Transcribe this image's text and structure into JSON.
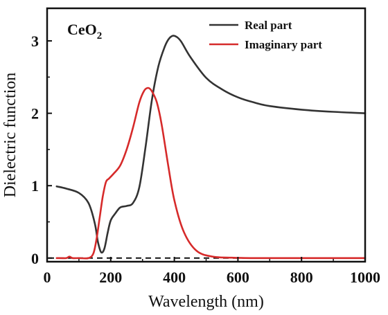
{
  "chart_data": {
    "type": "line",
    "title": "CeO",
    "title_subscript": "2",
    "xlabel": "Wavelength (nm)",
    "ylabel": "Dielectric function",
    "xlim": [
      0,
      1000
    ],
    "ylim": [
      -0.05,
      3.45
    ],
    "x_ticks": [
      0,
      200,
      400,
      600,
      800,
      1000
    ],
    "y_ticks": [
      0,
      1,
      2,
      3
    ],
    "grid": false,
    "legend_position": "top-right",
    "series": [
      {
        "name": "Real part",
        "color": "#333333",
        "x": [
          30,
          60,
          100,
          130,
          150,
          160,
          170,
          180,
          190,
          200,
          215,
          230,
          250,
          270,
          290,
          310,
          330,
          350,
          370,
          385,
          400,
          420,
          450,
          500,
          550,
          600,
          650,
          700,
          800,
          900,
          1000
        ],
        "y": [
          0.99,
          0.96,
          0.9,
          0.76,
          0.48,
          0.22,
          0.08,
          0.13,
          0.34,
          0.52,
          0.62,
          0.7,
          0.72,
          0.76,
          0.98,
          1.55,
          2.2,
          2.65,
          2.92,
          3.04,
          3.07,
          3.0,
          2.78,
          2.49,
          2.33,
          2.22,
          2.15,
          2.1,
          2.05,
          2.02,
          2.0
        ]
      },
      {
        "name": "Imaginary part",
        "color": "#d62a2a",
        "x": [
          30,
          60,
          70,
          80,
          100,
          130,
          145,
          155,
          165,
          175,
          185,
          195,
          210,
          230,
          250,
          270,
          290,
          305,
          318,
          330,
          345,
          360,
          380,
          400,
          430,
          470,
          520,
          580,
          650,
          800,
          1000
        ],
        "y": [
          0.0,
          0.0,
          0.02,
          0.0,
          0.0,
          0.0,
          0.06,
          0.25,
          0.55,
          0.85,
          1.05,
          1.1,
          1.17,
          1.28,
          1.5,
          1.8,
          2.15,
          2.31,
          2.35,
          2.3,
          2.15,
          1.85,
          1.3,
          0.8,
          0.36,
          0.1,
          0.02,
          0.005,
          0.0,
          0.0,
          0.0
        ]
      }
    ],
    "reference_line": {
      "y": 0,
      "style": "dashed",
      "color": "#111111"
    }
  }
}
